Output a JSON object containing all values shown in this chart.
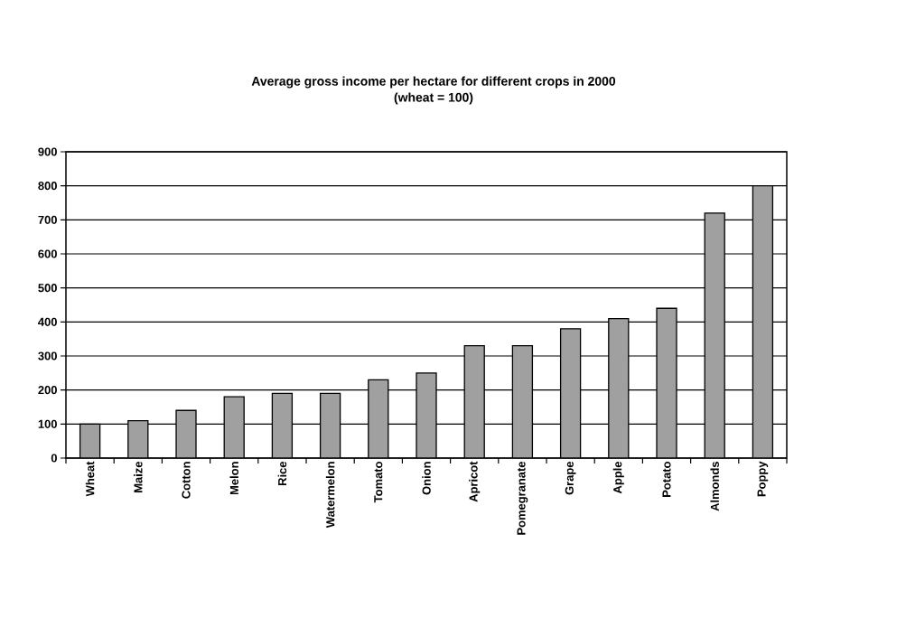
{
  "chart_data": {
    "type": "bar",
    "title": "Average gross income per hectare for different crops in 2000",
    "subtitle": "(wheat = 100)",
    "categories": [
      "Wheat",
      "Maize",
      "Cotton",
      "Melon",
      "Rice",
      "Watermelon",
      "Tomato",
      "Onion",
      "Apricot",
      "Pomegranate",
      "Grape",
      "Apple",
      "Potato",
      "Almonds",
      "Poppy"
    ],
    "values": [
      100,
      110,
      140,
      180,
      190,
      190,
      230,
      250,
      330,
      330,
      380,
      410,
      440,
      720,
      800
    ],
    "color": "#a0a0a0",
    "ylim": [
      0,
      900
    ],
    "yticks": [
      0,
      100,
      200,
      300,
      400,
      500,
      600,
      700,
      800,
      900
    ],
    "grid": "y"
  }
}
